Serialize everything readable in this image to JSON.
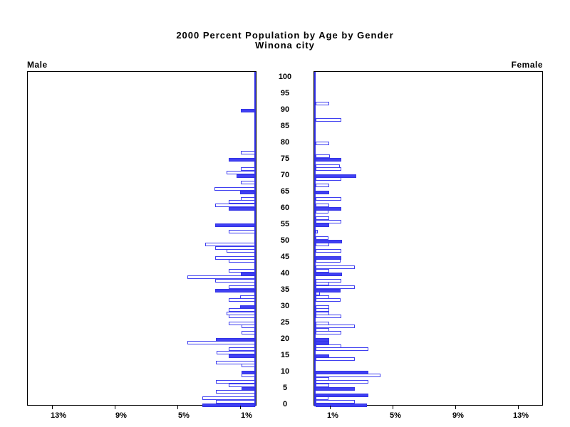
{
  "title": "2000  Percent  Population  by  Age  by  Gender",
  "subtitle": "Winona  city",
  "panel_labels": {
    "male": "Male",
    "female": "Female"
  },
  "chart_data": {
    "type": "bar",
    "variant": "population-pyramid",
    "title": "2000 Percent Population by Age by Gender",
    "subtitle": "Winona city",
    "legend": "none",
    "grid": "off",
    "age_axis": {
      "min": 0,
      "max": 100,
      "step": 5,
      "tick_labels": [
        "0",
        "5",
        "10",
        "15",
        "20",
        "25",
        "30",
        "35",
        "40",
        "45",
        "50",
        "55",
        "60",
        "65",
        "70",
        "75",
        "80",
        "85",
        "90",
        "95",
        "100"
      ]
    },
    "x_axis": {
      "unit": "%",
      "max": 14.6,
      "ticks": [
        1,
        5,
        9,
        13
      ],
      "tick_labels": [
        "1%",
        "5%",
        "9%",
        "13%"
      ],
      "male_direction": "right-to-left",
      "female_direction": "left-to-right"
    },
    "colors": {
      "bar_fill": "#4040f2",
      "bar_outline": "#3f3ff0",
      "outlined_bar_fill": "#ffffff",
      "axis_line": "#000000",
      "zero_axis": "#3333e6",
      "text": "#000000"
    },
    "note": "filled=solid blue bar (mostly ages at multiples of 5); outlined=white bar with blue border; values are percent of population, estimated from pixels",
    "series": [
      {
        "name": "Male",
        "side": "left",
        "bars": [
          {
            "age": 0,
            "value": 3.35,
            "filled": true
          },
          {
            "age": 1,
            "value": 2.5,
            "filled": false
          },
          {
            "age": 2,
            "value": 3.35,
            "filled": false
          },
          {
            "age": 4,
            "value": 2.5,
            "filled": false
          },
          {
            "age": 5,
            "value": 0.85,
            "filled": true
          },
          {
            "age": 6,
            "value": 1.7,
            "filled": false
          },
          {
            "age": 7,
            "value": 2.5,
            "filled": false
          },
          {
            "age": 9,
            "value": 0.85,
            "filled": false
          },
          {
            "age": 10,
            "value": 0.85,
            "filled": true
          },
          {
            "age": 12,
            "value": 0.85,
            "filled": false
          },
          {
            "age": 13,
            "value": 2.5,
            "filled": false
          },
          {
            "age": 15,
            "value": 1.7,
            "filled": true
          },
          {
            "age": 16,
            "value": 2.45,
            "filled": false
          },
          {
            "age": 17,
            "value": 1.7,
            "filled": false
          },
          {
            "age": 19,
            "value": 4.3,
            "filled": false
          },
          {
            "age": 20,
            "value": 2.5,
            "filled": true
          },
          {
            "age": 22,
            "value": 0.85,
            "filled": false
          },
          {
            "age": 24,
            "value": 0.85,
            "filled": false
          },
          {
            "age": 25,
            "value": 1.7,
            "filled": false
          },
          {
            "age": 27,
            "value": 1.7,
            "filled": false
          },
          {
            "age": 28,
            "value": 1.8,
            "filled": false
          },
          {
            "age": 29,
            "value": 1.7,
            "filled": false
          },
          {
            "age": 30,
            "value": 0.95,
            "filled": true
          },
          {
            "age": 32,
            "value": 1.7,
            "filled": false
          },
          {
            "age": 33,
            "value": 0.95,
            "filled": false
          },
          {
            "age": 35,
            "value": 2.55,
            "filled": true
          },
          {
            "age": 36,
            "value": 1.7,
            "filled": false
          },
          {
            "age": 38,
            "value": 2.55,
            "filled": false
          },
          {
            "age": 39,
            "value": 4.3,
            "filled": false
          },
          {
            "age": 40,
            "value": 0.9,
            "filled": true
          },
          {
            "age": 41,
            "value": 1.7,
            "filled": false
          },
          {
            "age": 44,
            "value": 1.7,
            "filled": false
          },
          {
            "age": 45,
            "value": 2.55,
            "filled": false
          },
          {
            "age": 47,
            "value": 1.8,
            "filled": false
          },
          {
            "age": 48,
            "value": 2.55,
            "filled": false
          },
          {
            "age": 49,
            "value": 3.2,
            "filled": false
          },
          {
            "age": 53,
            "value": 1.7,
            "filled": false
          },
          {
            "age": 55,
            "value": 2.55,
            "filled": true
          },
          {
            "age": 60,
            "value": 1.7,
            "filled": true
          },
          {
            "age": 61,
            "value": 2.55,
            "filled": false
          },
          {
            "age": 62,
            "value": 1.7,
            "filled": false
          },
          {
            "age": 63,
            "value": 0.9,
            "filled": false
          },
          {
            "age": 65,
            "value": 0.95,
            "filled": true
          },
          {
            "age": 66,
            "value": 2.6,
            "filled": false
          },
          {
            "age": 68,
            "value": 0.9,
            "filled": false
          },
          {
            "age": 70,
            "value": 1.2,
            "filled": true
          },
          {
            "age": 71,
            "value": 1.8,
            "filled": false
          },
          {
            "age": 72,
            "value": 0.9,
            "filled": false
          },
          {
            "age": 75,
            "value": 1.7,
            "filled": true
          },
          {
            "age": 77,
            "value": 0.9,
            "filled": false
          },
          {
            "age": 90,
            "value": 0.9,
            "filled": true
          }
        ]
      },
      {
        "name": "Female",
        "side": "right",
        "bars": [
          {
            "age": 0,
            "value": 3.25,
            "filled": true
          },
          {
            "age": 1,
            "value": 2.5,
            "filled": false
          },
          {
            "age": 2,
            "value": 0.82,
            "filled": false
          },
          {
            "age": 3,
            "value": 3.35,
            "filled": true
          },
          {
            "age": 5,
            "value": 2.5,
            "filled": true
          },
          {
            "age": 6,
            "value": 0.85,
            "filled": false
          },
          {
            "age": 7,
            "value": 3.35,
            "filled": false
          },
          {
            "age": 8,
            "value": 0.85,
            "filled": false
          },
          {
            "age": 9,
            "value": 4.15,
            "filled": false
          },
          {
            "age": 10,
            "value": 3.35,
            "filled": true
          },
          {
            "age": 14,
            "value": 2.5,
            "filled": false
          },
          {
            "age": 15,
            "value": 0.85,
            "filled": true
          },
          {
            "age": 17,
            "value": 3.35,
            "filled": false
          },
          {
            "age": 18,
            "value": 1.65,
            "filled": false
          },
          {
            "age": 19,
            "value": 0.85,
            "filled": true
          },
          {
            "age": 20,
            "value": 0.85,
            "filled": true
          },
          {
            "age": 22,
            "value": 1.65,
            "filled": false
          },
          {
            "age": 23,
            "value": 0.85,
            "filled": false
          },
          {
            "age": 24,
            "value": 2.5,
            "filled": false
          },
          {
            "age": 25,
            "value": 0.85,
            "filled": false
          },
          {
            "age": 27,
            "value": 1.65,
            "filled": false
          },
          {
            "age": 28,
            "value": 0.85,
            "filled": false
          },
          {
            "age": 29,
            "value": 0.85,
            "filled": false
          },
          {
            "age": 30,
            "value": 0.85,
            "filled": false
          },
          {
            "age": 32,
            "value": 1.6,
            "filled": false
          },
          {
            "age": 33,
            "value": 0.85,
            "filled": false
          },
          {
            "age": 34,
            "value": 0.25,
            "filled": false
          },
          {
            "age": 35,
            "value": 1.6,
            "filled": true
          },
          {
            "age": 36,
            "value": 2.5,
            "filled": false
          },
          {
            "age": 37,
            "value": 0.85,
            "filled": false
          },
          {
            "age": 38,
            "value": 1.65,
            "filled": false
          },
          {
            "age": 40,
            "value": 1.7,
            "filled": true
          },
          {
            "age": 41,
            "value": 0.85,
            "filled": false
          },
          {
            "age": 42,
            "value": 2.5,
            "filled": false
          },
          {
            "age": 44,
            "value": 1.6,
            "filled": false
          },
          {
            "age": 45,
            "value": 1.65,
            "filled": true
          },
          {
            "age": 47,
            "value": 1.65,
            "filled": false
          },
          {
            "age": 49,
            "value": 0.85,
            "filled": false
          },
          {
            "age": 50,
            "value": 1.7,
            "filled": true
          },
          {
            "age": 51,
            "value": 0.8,
            "filled": false
          },
          {
            "age": 53,
            "value": 0.15,
            "filled": false
          },
          {
            "age": 55,
            "value": 0.85,
            "filled": true
          },
          {
            "age": 56,
            "value": 1.65,
            "filled": false
          },
          {
            "age": 57,
            "value": 0.85,
            "filled": false
          },
          {
            "age": 59,
            "value": 0.8,
            "filled": false
          },
          {
            "age": 60,
            "value": 1.65,
            "filled": true
          },
          {
            "age": 61,
            "value": 0.85,
            "filled": false
          },
          {
            "age": 63,
            "value": 1.65,
            "filled": false
          },
          {
            "age": 65,
            "value": 0.85,
            "filled": true
          },
          {
            "age": 67,
            "value": 0.85,
            "filled": false
          },
          {
            "age": 69,
            "value": 1.65,
            "filled": false
          },
          {
            "age": 70,
            "value": 2.6,
            "filled": true
          },
          {
            "age": 72,
            "value": 1.65,
            "filled": false
          },
          {
            "age": 73,
            "value": 1.55,
            "filled": false
          },
          {
            "age": 75,
            "value": 1.65,
            "filled": true
          },
          {
            "age": 76,
            "value": 0.9,
            "filled": false
          },
          {
            "age": 80,
            "value": 0.85,
            "filled": false
          },
          {
            "age": 87,
            "value": 1.65,
            "filled": false
          },
          {
            "age": 92,
            "value": 0.85,
            "filled": false
          }
        ]
      }
    ]
  }
}
